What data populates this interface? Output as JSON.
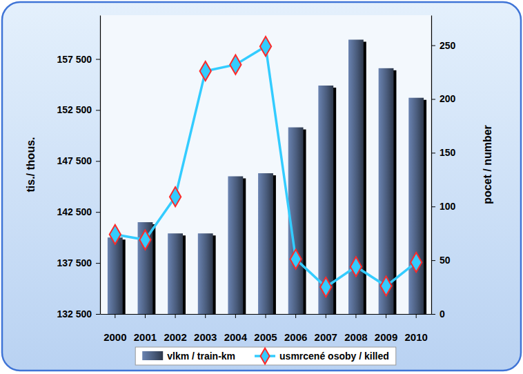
{
  "chart_data": {
    "type": "bar",
    "categories": [
      "2000",
      "2001",
      "2002",
      "2003",
      "2004",
      "2005",
      "2006",
      "2007",
      "2008",
      "2009",
      "2010"
    ],
    "series": [
      {
        "name": "vlkm / train-km",
        "type": "bar",
        "color": "#3c4a64",
        "values": [
          140000,
          141500,
          140400,
          140400,
          146000,
          146300,
          150800,
          154900,
          159400,
          156600,
          153700
        ]
      },
      {
        "name": "usmrcené osoby / killed",
        "type": "line",
        "axis": "y2",
        "color": "#33ccff",
        "marker": "diamond",
        "values": [
          74,
          69,
          109,
          226,
          232,
          249,
          51,
          25,
          44,
          26,
          48
        ]
      }
    ],
    "ylabel": "tis./ thous.",
    "y2label": "pocet / number",
    "ylim": [
      132500,
      161800
    ],
    "yticks": [
      {
        "value": 132500,
        "label": "132 500"
      },
      {
        "value": 137500,
        "label": "137 500"
      },
      {
        "value": 142500,
        "label": "142 500"
      },
      {
        "value": 147500,
        "label": "147 500"
      },
      {
        "value": 152500,
        "label": "152 500"
      },
      {
        "value": 157500,
        "label": "157 500"
      }
    ],
    "y2lim": [
      0,
      278
    ],
    "y2ticks": [
      0,
      50,
      100,
      150,
      200,
      250
    ],
    "legend": "bottom"
  }
}
